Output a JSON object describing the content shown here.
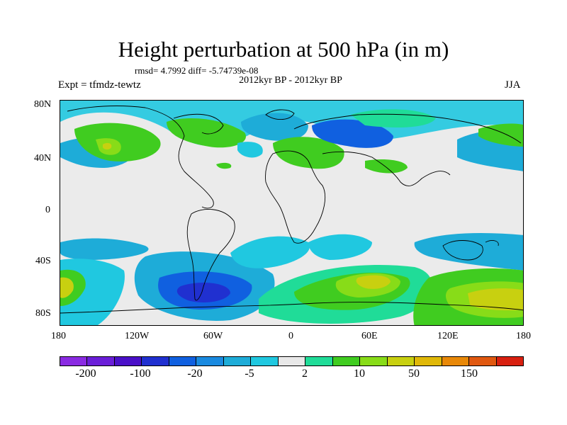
{
  "title": "Height perturbation at 500 hPa (in m)",
  "stats": "rmsd= 4.7992 diff= -5.74739e-08",
  "period": "2012kyr BP - 2012kyr BP",
  "expt": "Expt = tfmdz-tewtz",
  "season": "JJA",
  "lat_labels": [
    "80N",
    "40N",
    "0",
    "40S",
    "80S"
  ],
  "lon_labels": [
    "180",
    "120W",
    "60W",
    "0",
    "60E",
    "120E",
    "180"
  ],
  "colorbar": {
    "colors": [
      "#8a2be2",
      "#6a1ed8",
      "#4a10c8",
      "#2030d0",
      "#1060e0",
      "#1a8ae0",
      "#1eacd8",
      "#20c8e0",
      "#e8e8e8",
      "#20dc98",
      "#40cc20",
      "#88dc18",
      "#c8d010",
      "#e0b808",
      "#e88808",
      "#e05810",
      "#d82010"
    ],
    "labels": [
      "-200",
      "-100",
      "-20",
      "-5",
      "2",
      "10",
      "50",
      "150"
    ]
  },
  "map_colors": {
    "neutral": "#ebebeb",
    "light_blue": "#1eacd8",
    "mid_blue": "#1060e0",
    "dark_blue": "#2030d0",
    "green": "#40cc20",
    "light_green": "#20dc98",
    "yellow_green": "#c8d010"
  }
}
